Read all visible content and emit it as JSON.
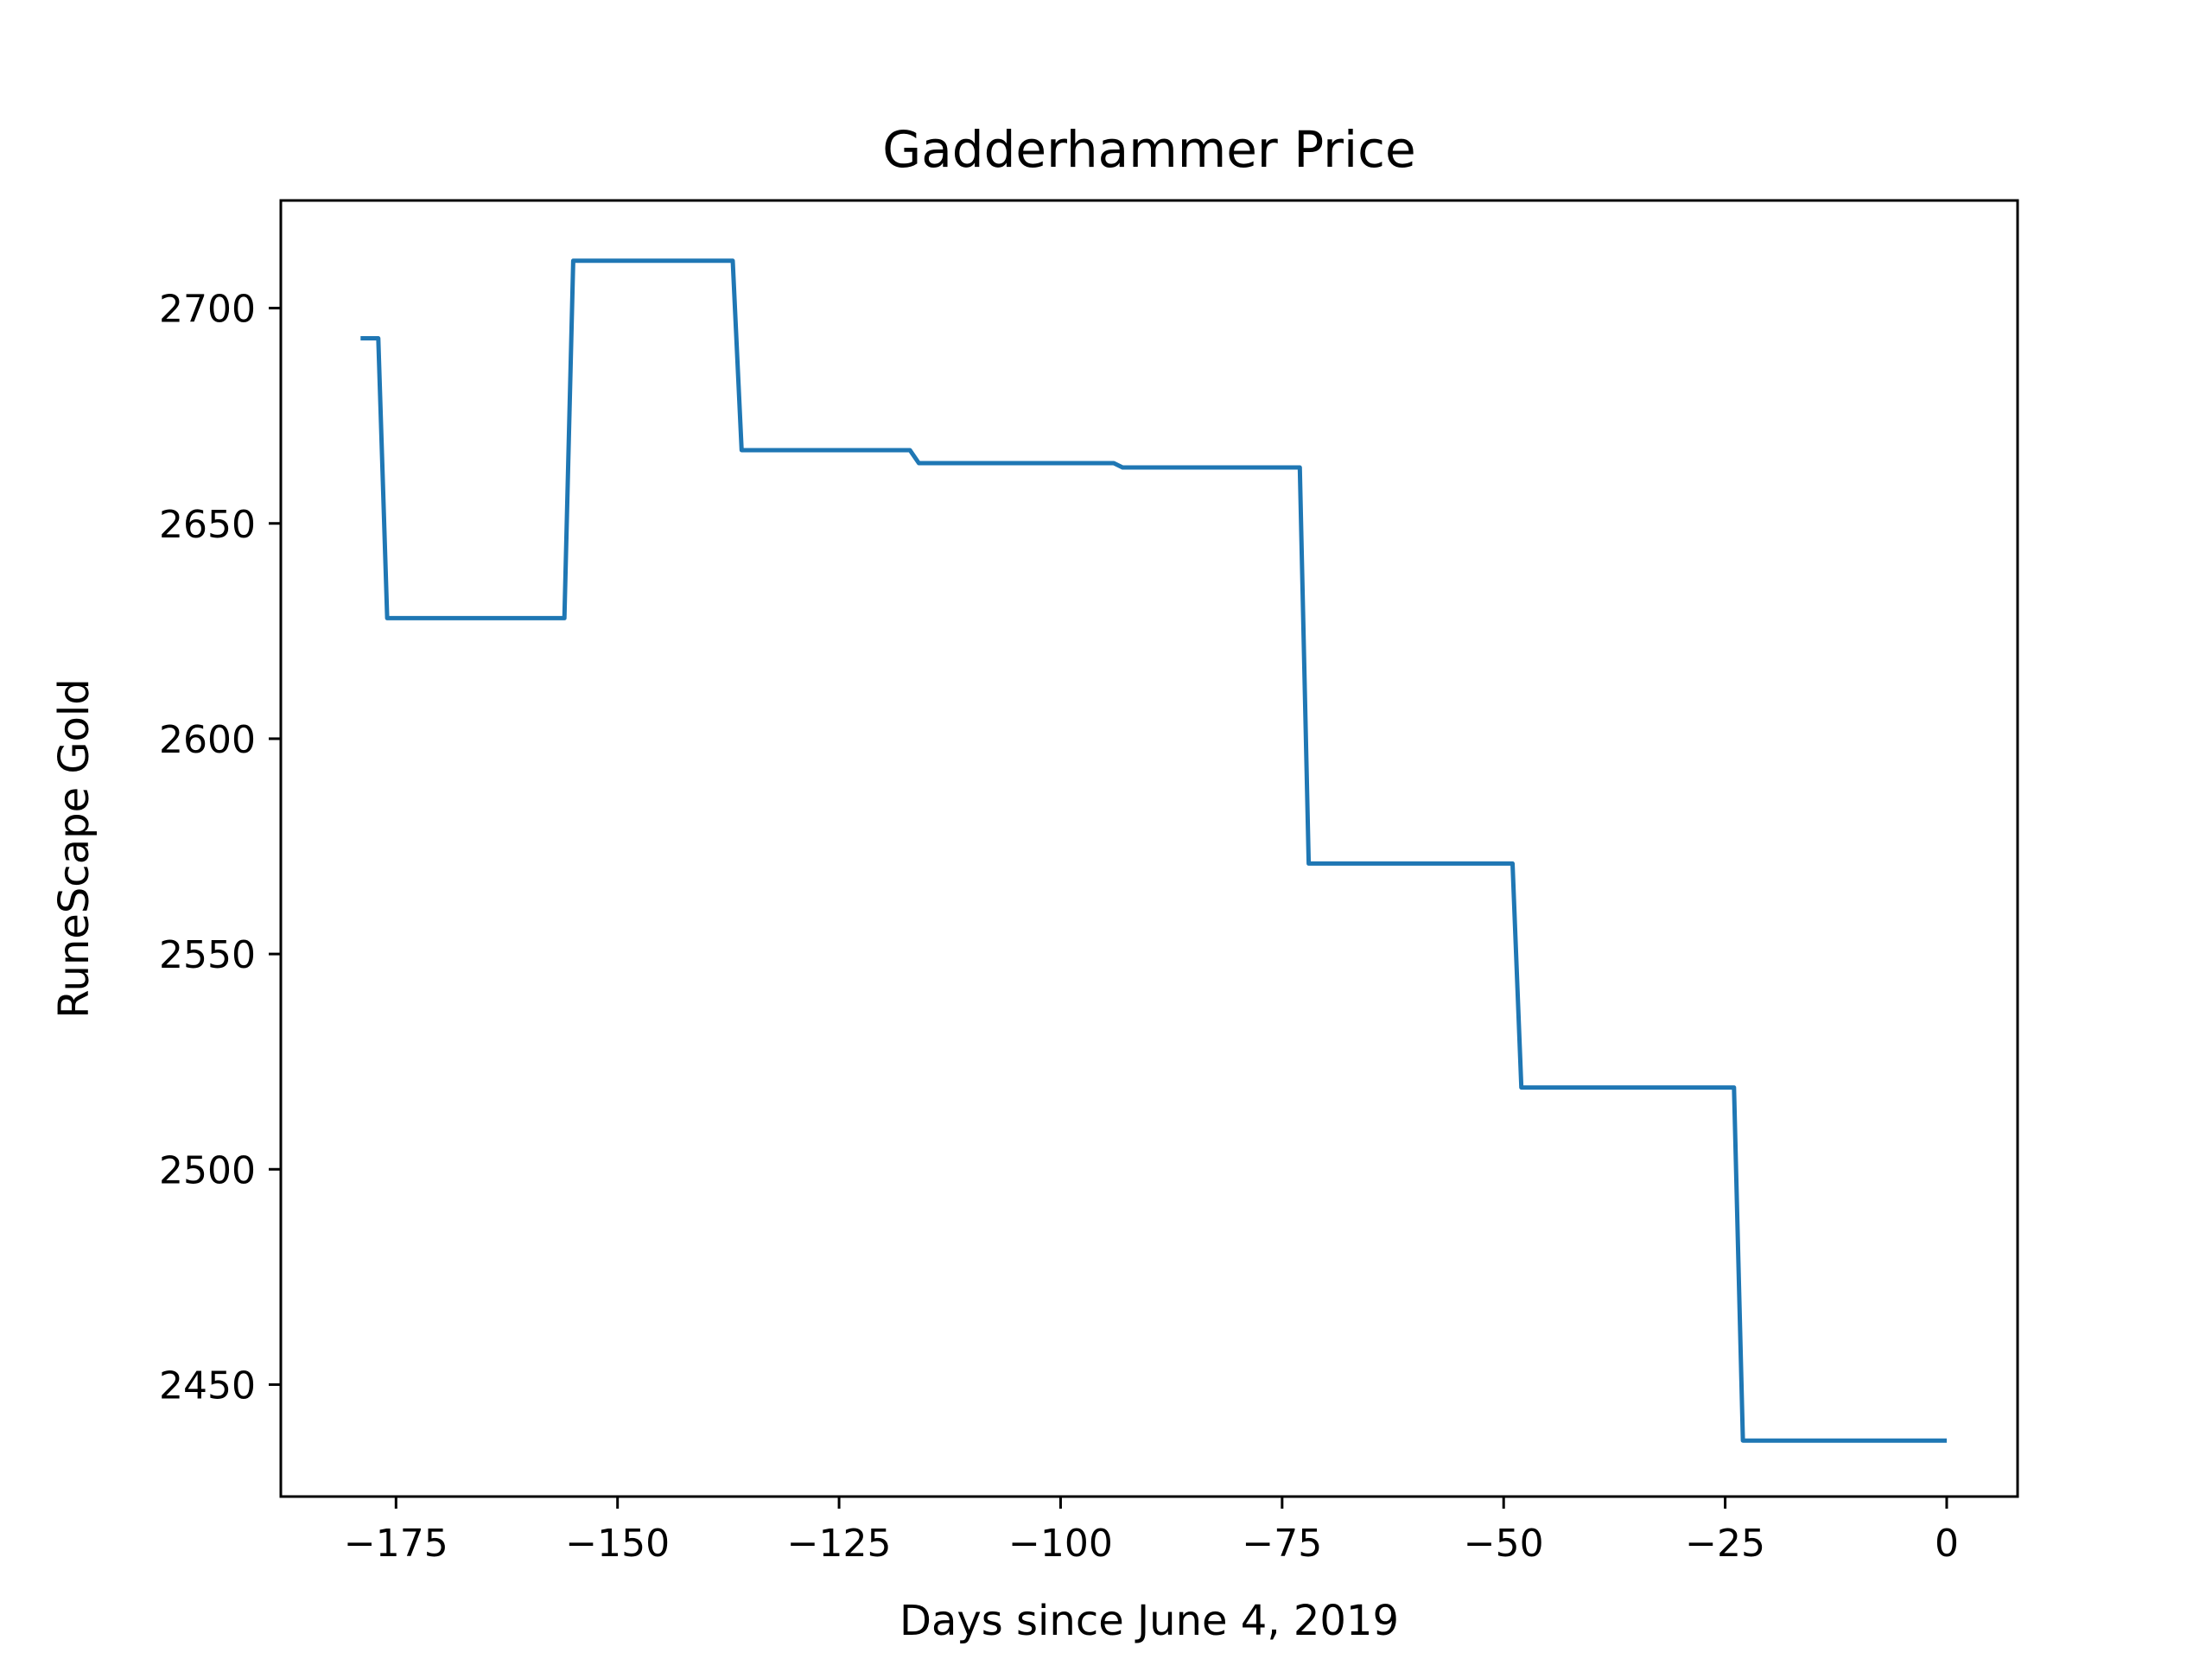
{
  "chart_data": {
    "type": "line",
    "title": "Gadderhammer Price",
    "xlabel": "Days since June 4, 2019",
    "ylabel": "RuneScape Gold",
    "xlim": [
      -188,
      8
    ],
    "ylim": [
      2424,
      2725
    ],
    "xticks": [
      -175,
      -150,
      -125,
      -100,
      -75,
      -50,
      -25,
      0
    ],
    "xtick_labels": [
      "−175",
      "−150",
      "−125",
      "−100",
      "−75",
      "−50",
      "−25",
      "0"
    ],
    "yticks": [
      2450,
      2500,
      2550,
      2600,
      2650,
      2700
    ],
    "ytick_labels": [
      "2450",
      "2500",
      "2550",
      "2600",
      "2650",
      "2700"
    ],
    "grid": false,
    "legend": false,
    "color": "#1f77b4",
    "series": [
      {
        "x": [
          -179,
          -177,
          -176,
          -156,
          -155,
          -137,
          -136,
          -117,
          -116,
          -94,
          -93,
          -73,
          -72,
          -49,
          -48,
          -24,
          -23,
          0
        ],
        "y": [
          2693,
          2693,
          2628,
          2628,
          2711,
          2711,
          2667,
          2667,
          2664,
          2664,
          2663,
          2663,
          2571,
          2571,
          2519,
          2519,
          2437,
          2437
        ]
      }
    ]
  }
}
